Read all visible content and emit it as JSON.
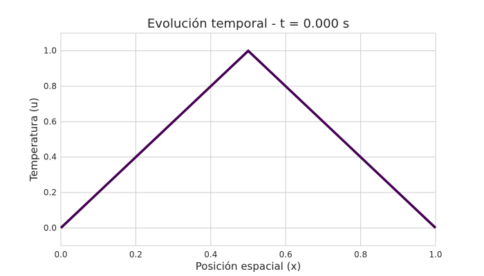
{
  "chart_data": {
    "type": "line",
    "title": "Evolución temporal - t = 0.000 s",
    "xlabel": "Posición espacial (x)",
    "ylabel": "Temperatura (u)",
    "xlim": [
      0.0,
      1.0
    ],
    "ylim": [
      -0.1,
      1.1
    ],
    "xticks": [
      "0.0",
      "0.2",
      "0.4",
      "0.6",
      "0.8",
      "1.0"
    ],
    "yticks": [
      "0.0",
      "0.2",
      "0.4",
      "0.6",
      "0.8",
      "1.0"
    ],
    "grid": true,
    "series": [
      {
        "color": "#440154",
        "x": [
          0.0,
          0.5,
          1.0
        ],
        "y": [
          0.0,
          1.0,
          0.0
        ]
      }
    ]
  }
}
